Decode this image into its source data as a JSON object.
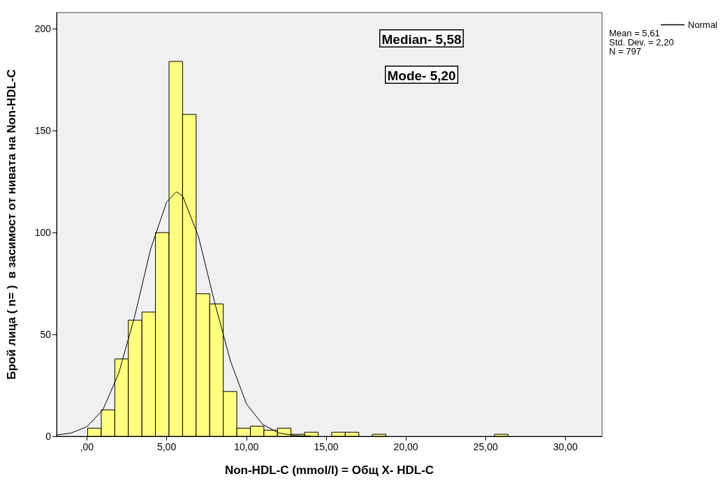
{
  "chart_data": {
    "type": "histogram",
    "xlabel": "Non-HDL-C (mmol/l) = Общ X- HDL-C",
    "ylabel": "Брой лица ( n= )  в засимост от нивата на Non-HDL-C",
    "xlim": [
      -1.9,
      32.3
    ],
    "xticks": [
      {
        "value": 0,
        "label": ",00"
      },
      {
        "value": 5,
        "label": "5,00"
      },
      {
        "value": 10,
        "label": "10,00"
      },
      {
        "value": 15,
        "label": "15,00"
      },
      {
        "value": 20,
        "label": "20,00"
      },
      {
        "value": 25,
        "label": "25,00"
      },
      {
        "value": 30,
        "label": "30,00"
      }
    ],
    "ylim": [
      0,
      208
    ],
    "yticks": [
      0,
      50,
      100,
      150,
      200
    ],
    "grid": false,
    "legend": "top right",
    "annotations": [
      "Median- 5,58",
      "Mode- 5,20",
      "Mean = 5,61",
      "Std. Dev. = 2,20",
      "N = 797"
    ],
    "series": [
      {
        "type": "histogram",
        "color": "#ffff80",
        "bins": [
          0.05,
          0.9,
          1.75,
          2.6,
          3.45,
          4.3,
          5.15,
          6.0,
          6.85,
          7.7,
          8.55,
          9.4,
          10.25,
          11.1,
          11.95,
          12.8,
          13.65,
          14.5,
          15.35,
          16.2,
          17.05,
          17.9,
          18.75,
          19.6,
          20.45,
          21.3,
          22.15,
          23.0,
          23.85,
          24.7,
          25.55,
          26.4
        ],
        "values": [
          4,
          13,
          38,
          57,
          61,
          100,
          184,
          158,
          70,
          65,
          22,
          4,
          5,
          3,
          4,
          1,
          2,
          0,
          2,
          2,
          0,
          1,
          0,
          0,
          0,
          0,
          0,
          0,
          0,
          0,
          1
        ]
      },
      {
        "type": "line",
        "name": "Normal",
        "color": "#000000",
        "marker": "none",
        "line_style": "solid",
        "x": [
          -1.9,
          -1,
          0,
          1,
          2,
          3,
          4,
          5,
          5.61,
          6,
          7,
          8,
          9,
          10,
          11,
          12,
          13,
          14
        ],
        "values": [
          0.6,
          1.6,
          4.7,
          13,
          31,
          59,
          92,
          115,
          120,
          118,
          98,
          66,
          37,
          16,
          6,
          1.7,
          0.4,
          0.1
        ]
      }
    ]
  }
}
